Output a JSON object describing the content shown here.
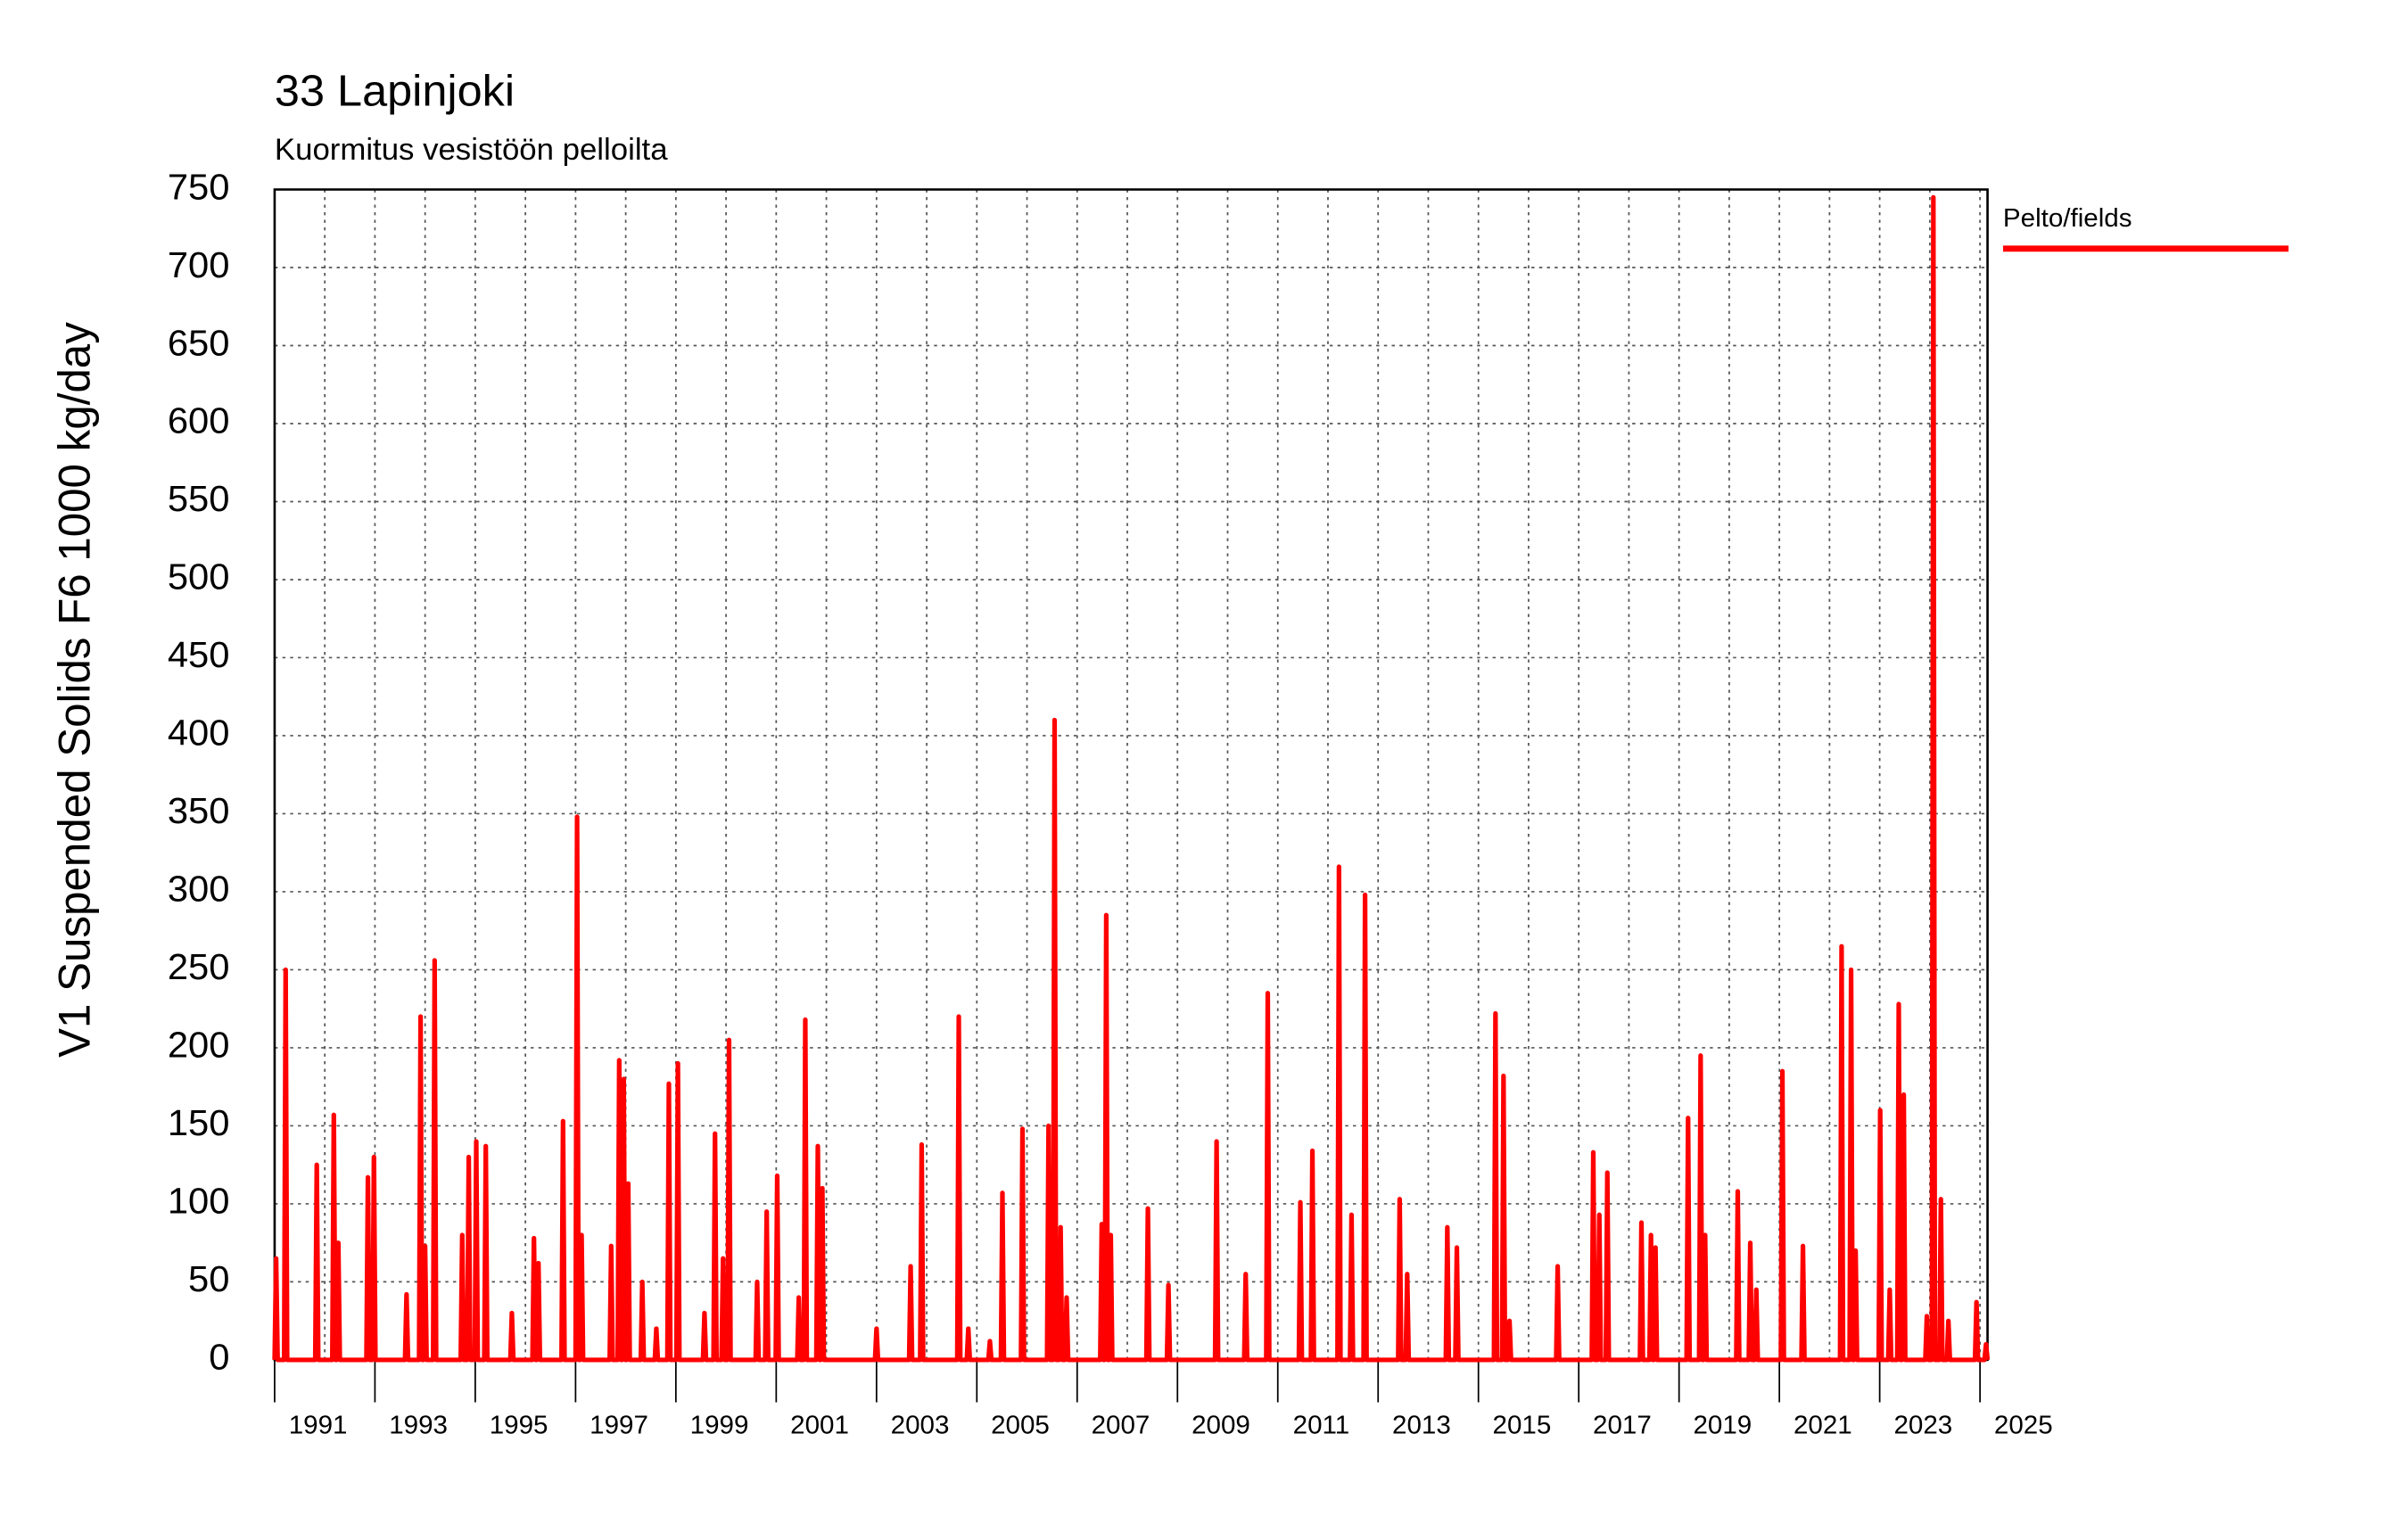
{
  "chart_data": {
    "type": "line",
    "title": "33 Lapinjoki",
    "subtitle": "Kuormitus vesistöön pelloilta",
    "y_label": "V1 Suspended Solids F6 1000 kg/day",
    "xlim": [
      1991,
      2025.15
    ],
    "xticks": [
      1991,
      1993,
      1995,
      1997,
      1999,
      2001,
      2003,
      2005,
      2007,
      2009,
      2011,
      2013,
      2015,
      2017,
      2019,
      2021,
      2023,
      2025
    ],
    "ylim": [
      0,
      750
    ],
    "yticks": [
      0,
      50,
      100,
      150,
      200,
      250,
      300,
      350,
      400,
      450,
      500,
      550,
      600,
      650,
      700,
      750
    ],
    "grid": true,
    "legend": "right",
    "x": [
      1991.0,
      1991.03,
      1991.06,
      1991.19,
      1991.22,
      1991.25,
      1991.81,
      1991.84,
      1991.87,
      1992.15,
      1992.18,
      1992.21,
      1992.24,
      1992.27,
      1992.3,
      1992.83,
      1992.86,
      1992.89,
      1992.95,
      1992.98,
      1993.01,
      1993.6,
      1993.63,
      1993.66,
      1993.88,
      1993.91,
      1993.94,
      1993.97,
      1994.0,
      1994.03,
      1994.16,
      1994.19,
      1994.22,
      1994.71,
      1994.74,
      1994.77,
      1994.84,
      1994.87,
      1994.9,
      1994.99,
      1995.02,
      1995.05,
      1995.18,
      1995.21,
      1995.24,
      1995.7,
      1995.73,
      1995.76,
      1996.14,
      1996.17,
      1996.2,
      1996.23,
      1996.26,
      1996.29,
      1996.72,
      1996.75,
      1996.78,
      1997.0,
      1997.03,
      1997.06,
      1997.09,
      1997.12,
      1997.15,
      1997.68,
      1997.71,
      1997.74,
      1997.84,
      1997.87,
      1997.9,
      1997.93,
      1997.96,
      1997.99,
      1998.02,
      1998.05,
      1998.08,
      1998.3,
      1998.33,
      1998.36,
      1998.58,
      1998.61,
      1998.64,
      1998.83,
      1998.86,
      1998.89,
      1999.01,
      1999.04,
      1999.07,
      1999.54,
      1999.57,
      1999.6,
      1999.75,
      1999.78,
      1999.81,
      1999.91,
      1999.94,
      1999.97,
      2000.03,
      2000.06,
      2000.09,
      2000.59,
      2000.62,
      2000.65,
      2000.78,
      2000.81,
      2000.84,
      2000.99,
      2001.02,
      2001.05,
      2001.42,
      2001.45,
      2001.48,
      2001.55,
      2001.58,
      2001.61,
      2001.8,
      2001.83,
      2001.86,
      2001.89,
      2001.92,
      2001.95,
      2002.97,
      2003.0,
      2003.03,
      2003.65,
      2003.68,
      2003.71,
      2003.87,
      2003.9,
      2003.93,
      2004.61,
      2004.64,
      2004.67,
      2004.8,
      2004.83,
      2004.86,
      2005.23,
      2005.26,
      2005.29,
      2005.48,
      2005.51,
      2005.54,
      2005.88,
      2005.91,
      2005.94,
      2006.4,
      2006.43,
      2006.46,
      2006.52,
      2006.55,
      2006.58,
      2006.64,
      2006.67,
      2006.7,
      2006.76,
      2006.79,
      2006.82,
      2007.46,
      2007.49,
      2007.52,
      2007.55,
      2007.58,
      2007.61,
      2007.64,
      2007.67,
      2007.7,
      2008.38,
      2008.41,
      2008.44,
      2008.79,
      2008.82,
      2008.85,
      2009.75,
      2009.78,
      2009.81,
      2010.33,
      2010.36,
      2010.39,
      2010.77,
      2010.8,
      2010.83,
      2011.42,
      2011.45,
      2011.48,
      2011.66,
      2011.69,
      2011.72,
      2012.19,
      2012.22,
      2012.25,
      2012.44,
      2012.47,
      2012.5,
      2012.71,
      2012.74,
      2012.77,
      2013.4,
      2013.43,
      2013.46,
      2013.55,
      2013.58,
      2013.61,
      2014.35,
      2014.38,
      2014.41,
      2014.54,
      2014.57,
      2014.6,
      2015.31,
      2015.34,
      2015.37,
      2015.47,
      2015.5,
      2015.53,
      2015.59,
      2015.62,
      2015.65,
      2016.55,
      2016.58,
      2016.61,
      2017.26,
      2017.29,
      2017.32,
      2017.38,
      2017.41,
      2017.44,
      2017.54,
      2017.57,
      2017.6,
      2018.22,
      2018.25,
      2018.28,
      2018.41,
      2018.44,
      2018.47,
      2018.5,
      2018.53,
      2018.56,
      2019.15,
      2019.18,
      2019.21,
      2019.4,
      2019.43,
      2019.46,
      2019.49,
      2019.52,
      2019.55,
      2020.14,
      2020.17,
      2020.2,
      2020.39,
      2020.42,
      2020.45,
      2020.51,
      2020.54,
      2020.57,
      2021.03,
      2021.06,
      2021.09,
      2021.44,
      2021.47,
      2021.5,
      2022.21,
      2022.24,
      2022.27,
      2022.4,
      2022.43,
      2022.46,
      2022.49,
      2022.52,
      2022.55,
      2022.98,
      2023.01,
      2023.04,
      2023.17,
      2023.2,
      2023.23,
      2023.35,
      2023.38,
      2023.41,
      2023.45,
      2023.48,
      2023.51,
      2023.91,
      2023.94,
      2023.97,
      2024.04,
      2024.07,
      2024.1,
      2024.19,
      2024.22,
      2024.25,
      2024.34,
      2024.37,
      2024.4,
      2024.9,
      2024.93,
      2024.96,
      2025.09,
      2025.12,
      2025.15
    ],
    "series": [
      {
        "name": "Pelto/fields",
        "color": "#ff0000",
        "values": [
          0,
          65,
          0,
          0,
          250,
          0,
          0,
          125,
          0,
          0,
          157,
          0,
          0,
          75,
          0,
          0,
          117,
          0,
          0,
          130,
          0,
          0,
          42,
          0,
          0,
          220,
          0,
          0,
          73,
          0,
          0,
          256,
          0,
          0,
          80,
          0,
          0,
          130,
          0,
          0,
          140,
          0,
          0,
          137,
          0,
          0,
          30,
          0,
          0,
          78,
          0,
          0,
          62,
          0,
          0,
          153,
          0,
          0,
          348,
          0,
          0,
          80,
          0,
          0,
          73,
          0,
          0,
          192,
          0,
          0,
          180,
          0,
          0,
          113,
          0,
          0,
          50,
          0,
          0,
          20,
          0,
          0,
          177,
          0,
          0,
          190,
          0,
          0,
          30,
          0,
          0,
          145,
          0,
          0,
          65,
          0,
          0,
          205,
          0,
          0,
          50,
          0,
          0,
          95,
          0,
          0,
          118,
          0,
          0,
          40,
          0,
          0,
          218,
          0,
          0,
          137,
          0,
          0,
          110,
          0,
          0,
          20,
          0,
          0,
          60,
          0,
          0,
          138,
          0,
          0,
          220,
          0,
          0,
          20,
          0,
          0,
          12,
          0,
          0,
          107,
          0,
          0,
          148,
          0,
          0,
          150,
          0,
          0,
          410,
          0,
          0,
          85,
          0,
          0,
          40,
          0,
          0,
          87,
          0,
          0,
          285,
          0,
          0,
          80,
          0,
          0,
          97,
          0,
          0,
          48,
          0,
          0,
          140,
          0,
          0,
          55,
          0,
          0,
          235,
          0,
          0,
          101,
          0,
          0,
          134,
          0,
          0,
          316,
          0,
          0,
          93,
          0,
          0,
          298,
          0,
          0,
          103,
          0,
          0,
          55,
          0,
          0,
          85,
          0,
          0,
          72,
          0,
          0,
          222,
          0,
          0,
          182,
          0,
          0,
          25,
          0,
          0,
          60,
          0,
          0,
          133,
          0,
          0,
          93,
          0,
          0,
          120,
          0,
          0,
          88,
          0,
          0,
          80,
          0,
          0,
          72,
          0,
          0,
          155,
          0,
          0,
          195,
          0,
          0,
          80,
          0,
          0,
          108,
          0,
          0,
          75,
          0,
          0,
          45,
          0,
          0,
          185,
          0,
          0,
          73,
          0,
          0,
          265,
          0,
          0,
          250,
          0,
          0,
          70,
          0,
          0,
          160,
          0,
          0,
          45,
          0,
          0,
          228,
          0,
          0,
          170,
          0,
          0,
          28,
          0,
          0,
          745,
          0,
          0,
          103,
          0,
          0,
          25,
          0,
          0,
          37,
          0,
          0,
          10,
          0
        ]
      }
    ]
  }
}
